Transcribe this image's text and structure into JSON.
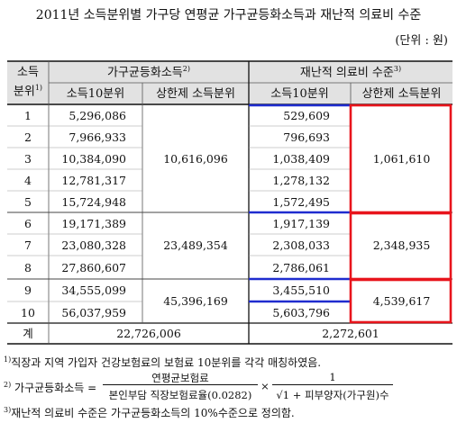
{
  "title": "2011년 소득분위별 가구당 연평균 가구균등화소득과 재난적 의료비 수준",
  "unit_note": "(단위 : 원)",
  "header": {
    "row_label_top": "소득",
    "row_label_bottom": "분위",
    "row_label_sup": "1)",
    "group1": "가구균등화소득",
    "group1_sup": "2)",
    "group2": "재난적 의료비 수준",
    "group2_sup": "3)",
    "sub_decile": "소득10분위",
    "sub_bracket": "상한제 소득분위"
  },
  "rows": [
    {
      "decile": "1",
      "income": "5,296,086",
      "cost": "529,609"
    },
    {
      "decile": "2",
      "income": "7,966,933",
      "cost": "796,693"
    },
    {
      "decile": "3",
      "income": "10,384,090",
      "cost": "1,038,409"
    },
    {
      "decile": "4",
      "income": "12,781,317",
      "cost": "1,278,132"
    },
    {
      "decile": "5",
      "income": "15,724,948",
      "cost": "1,572,495"
    },
    {
      "decile": "6",
      "income": "19,171,389",
      "cost": "1,917,139"
    },
    {
      "decile": "7",
      "income": "23,080,328",
      "cost": "2,308,033"
    },
    {
      "decile": "8",
      "income": "27,860,607",
      "cost": "2,786,061"
    },
    {
      "decile": "9",
      "income": "34,555,099",
      "cost": "3,455,510"
    },
    {
      "decile": "10",
      "income": "56,037,959",
      "cost": "5,603,796"
    }
  ],
  "brackets": {
    "income": [
      "10,616,096",
      "23,489,354",
      "45,396,169"
    ],
    "cost": [
      "1,061,610",
      "2,348,935",
      "4,539,617"
    ]
  },
  "total": {
    "label": "계",
    "income": "22,726,006",
    "cost": "2,272,601"
  },
  "footnotes": {
    "f1_sup": "1)",
    "f1": "직장과 지역 가입자 건강보험료의 보험료 10분위를 각각 매칭하였음.",
    "f2_sup": "2)",
    "f2_lhs": "가구균등화소득 =",
    "f2_num1": "연평균보험료",
    "f2_den1": "본인부담 직장보험료율(0.0282)",
    "f2_times": "×",
    "f2_num2": "1",
    "f2_den2": "√1 + 피부양자(가구원)수",
    "f3_sup": "3)",
    "f3": "재난적 의료비 수준은 가구균등화소득의 10%수준으로 정의함."
  },
  "colors": {
    "red_box": "#e8141c",
    "blue_line": "#1f2ccf",
    "rule": "#111111"
  }
}
